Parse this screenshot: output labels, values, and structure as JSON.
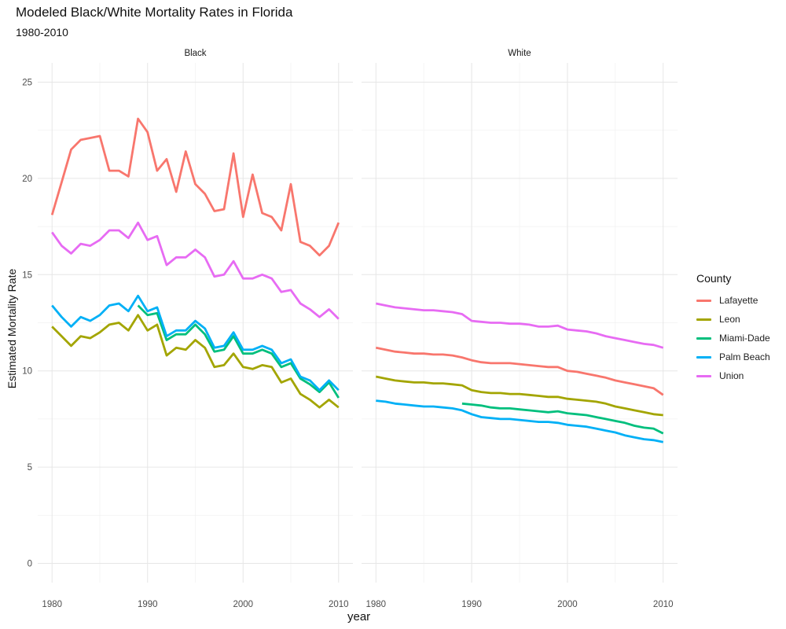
{
  "chart_data": {
    "type": "line",
    "title": "Modeled Black/White Mortality Rates in Florida",
    "subtitle": "1980-2010",
    "xlabel": "year",
    "ylabel": "Estimated Mortality Rate",
    "ylim": [
      -1,
      26
    ],
    "yticks": [
      0,
      5,
      10,
      15,
      20,
      25
    ],
    "xlim": [
      1978.5,
      2011.5
    ],
    "xticks": [
      1980,
      1990,
      2000,
      2010
    ],
    "grid": true,
    "legend_title": "County",
    "legend_position": "right",
    "colors": {
      "Lafayette": "#F8766D",
      "Leon": "#A3A500",
      "Miami-Dade": "#00BF7D",
      "Palm Beach": "#00B0F6",
      "Union": "#E76BF3"
    },
    "panels": [
      {
        "facet": "Black",
        "series": [
          {
            "name": "Lafayette",
            "x": [
              1980,
              1981,
              1982,
              1983,
              1984,
              1985,
              1986,
              1987,
              1988,
              1989,
              1990,
              1991,
              1992,
              1993,
              1994,
              1995,
              1996,
              1997,
              1998,
              1999,
              2000,
              2001,
              2002,
              2003,
              2004,
              2005,
              2006,
              2007,
              2008,
              2009,
              2010
            ],
            "values": [
              18.1,
              19.8,
              21.5,
              22.0,
              22.1,
              22.2,
              20.4,
              20.4,
              20.1,
              23.1,
              22.4,
              20.4,
              21.0,
              19.3,
              21.4,
              19.7,
              19.2,
              18.3,
              18.4,
              21.3,
              18.0,
              20.2,
              18.2,
              18.0,
              17.3,
              19.7,
              16.7,
              16.5,
              16.0,
              16.5,
              17.7
            ]
          },
          {
            "name": "Leon",
            "x": [
              1980,
              1981,
              1982,
              1983,
              1984,
              1985,
              1986,
              1987,
              1988,
              1989,
              1990,
              1991,
              1992,
              1993,
              1994,
              1995,
              1996,
              1997,
              1998,
              1999,
              2000,
              2001,
              2002,
              2003,
              2004,
              2005,
              2006,
              2007,
              2008,
              2009,
              2010
            ],
            "values": [
              12.3,
              11.8,
              11.3,
              11.8,
              11.7,
              12.0,
              12.4,
              12.5,
              12.1,
              12.9,
              12.1,
              12.4,
              10.8,
              11.2,
              11.1,
              11.6,
              11.2,
              10.2,
              10.3,
              10.9,
              10.2,
              10.1,
              10.3,
              10.2,
              9.4,
              9.6,
              8.8,
              8.5,
              8.1,
              8.5,
              8.1
            ]
          },
          {
            "name": "Miami-Dade",
            "x": [
              1989,
              1990,
              1991,
              1992,
              1993,
              1994,
              1995,
              1996,
              1997,
              1998,
              1999,
              2000,
              2001,
              2002,
              2003,
              2004,
              2005,
              2006,
              2007,
              2008,
              2009,
              2010
            ],
            "values": [
              13.4,
              12.9,
              13.0,
              11.6,
              11.9,
              11.9,
              12.4,
              11.9,
              11.0,
              11.1,
              11.8,
              10.9,
              10.9,
              11.1,
              10.9,
              10.2,
              10.4,
              9.6,
              9.3,
              8.9,
              9.4,
              8.6
            ]
          },
          {
            "name": "Palm Beach",
            "x": [
              1980,
              1981,
              1982,
              1983,
              1984,
              1985,
              1986,
              1987,
              1988,
              1989,
              1990,
              1991,
              1992,
              1993,
              1994,
              1995,
              1996,
              1997,
              1998,
              1999,
              2000,
              2001,
              2002,
              2003,
              2004,
              2005,
              2006,
              2007,
              2008,
              2009,
              2010
            ],
            "values": [
              13.4,
              12.8,
              12.3,
              12.8,
              12.6,
              12.9,
              13.4,
              13.5,
              13.1,
              13.9,
              13.1,
              13.3,
              11.8,
              12.1,
              12.1,
              12.6,
              12.2,
              11.2,
              11.3,
              12.0,
              11.1,
              11.1,
              11.3,
              11.1,
              10.4,
              10.6,
              9.7,
              9.5,
              9.0,
              9.5,
              9.0
            ]
          },
          {
            "name": "Union",
            "x": [
              1980,
              1981,
              1982,
              1983,
              1984,
              1985,
              1986,
              1987,
              1988,
              1989,
              1990,
              1991,
              1992,
              1993,
              1994,
              1995,
              1996,
              1997,
              1998,
              1999,
              2000,
              2001,
              2002,
              2003,
              2004,
              2005,
              2006,
              2007,
              2008,
              2009,
              2010
            ],
            "values": [
              17.2,
              16.5,
              16.1,
              16.6,
              16.5,
              16.8,
              17.3,
              17.3,
              16.9,
              17.7,
              16.8,
              17.0,
              15.5,
              15.9,
              15.9,
              16.3,
              15.9,
              14.9,
              15.0,
              15.7,
              14.8,
              14.8,
              15.0,
              14.8,
              14.1,
              14.2,
              13.5,
              13.2,
              12.8,
              13.2,
              12.7
            ]
          }
        ]
      },
      {
        "facet": "White",
        "series": [
          {
            "name": "Lafayette",
            "x": [
              1980,
              1981,
              1982,
              1983,
              1984,
              1985,
              1986,
              1987,
              1988,
              1989,
              1990,
              1991,
              1992,
              1993,
              1994,
              1995,
              1996,
              1997,
              1998,
              1999,
              2000,
              2001,
              2002,
              2003,
              2004,
              2005,
              2006,
              2007,
              2008,
              2009,
              2010
            ],
            "values": [
              11.2,
              11.1,
              11.0,
              10.95,
              10.9,
              10.9,
              10.85,
              10.85,
              10.8,
              10.7,
              10.55,
              10.45,
              10.4,
              10.4,
              10.4,
              10.35,
              10.3,
              10.25,
              10.2,
              10.2,
              10.0,
              9.95,
              9.85,
              9.75,
              9.65,
              9.5,
              9.4,
              9.3,
              9.2,
              9.1,
              8.75
            ]
          },
          {
            "name": "Leon",
            "x": [
              1980,
              1981,
              1982,
              1983,
              1984,
              1985,
              1986,
              1987,
              1988,
              1989,
              1990,
              1991,
              1992,
              1993,
              1994,
              1995,
              1996,
              1997,
              1998,
              1999,
              2000,
              2001,
              2002,
              2003,
              2004,
              2005,
              2006,
              2007,
              2008,
              2009,
              2010
            ],
            "values": [
              9.7,
              9.6,
              9.5,
              9.45,
              9.4,
              9.4,
              9.35,
              9.35,
              9.3,
              9.25,
              9.0,
              8.9,
              8.85,
              8.85,
              8.8,
              8.8,
              8.75,
              8.7,
              8.65,
              8.65,
              8.55,
              8.5,
              8.45,
              8.4,
              8.3,
              8.15,
              8.05,
              7.95,
              7.85,
              7.75,
              7.7
            ]
          },
          {
            "name": "Miami-Dade",
            "x": [
              1989,
              1990,
              1991,
              1992,
              1993,
              1994,
              1995,
              1996,
              1997,
              1998,
              1999,
              2000,
              2001,
              2002,
              2003,
              2004,
              2005,
              2006,
              2007,
              2008,
              2009,
              2010
            ],
            "values": [
              8.3,
              8.25,
              8.2,
              8.1,
              8.05,
              8.05,
              8.0,
              7.95,
              7.9,
              7.85,
              7.9,
              7.8,
              7.75,
              7.7,
              7.6,
              7.5,
              7.4,
              7.3,
              7.15,
              7.05,
              7.0,
              6.75
            ]
          },
          {
            "name": "Palm Beach",
            "x": [
              1980,
              1981,
              1982,
              1983,
              1984,
              1985,
              1986,
              1987,
              1988,
              1989,
              1990,
              1991,
              1992,
              1993,
              1994,
              1995,
              1996,
              1997,
              1998,
              1999,
              2000,
              2001,
              2002,
              2003,
              2004,
              2005,
              2006,
              2007,
              2008,
              2009,
              2010
            ],
            "values": [
              8.45,
              8.4,
              8.3,
              8.25,
              8.2,
              8.15,
              8.15,
              8.1,
              8.05,
              7.95,
              7.75,
              7.6,
              7.55,
              7.5,
              7.5,
              7.45,
              7.4,
              7.35,
              7.35,
              7.3,
              7.2,
              7.15,
              7.1,
              7.0,
              6.9,
              6.8,
              6.65,
              6.55,
              6.45,
              6.4,
              6.3
            ]
          },
          {
            "name": "Union",
            "x": [
              1980,
              1981,
              1982,
              1983,
              1984,
              1985,
              1986,
              1987,
              1988,
              1989,
              1990,
              1991,
              1992,
              1993,
              1994,
              1995,
              1996,
              1997,
              1998,
              1999,
              2000,
              2001,
              2002,
              2003,
              2004,
              2005,
              2006,
              2007,
              2008,
              2009,
              2010
            ],
            "values": [
              13.5,
              13.4,
              13.3,
              13.25,
              13.2,
              13.15,
              13.15,
              13.1,
              13.05,
              12.95,
              12.6,
              12.55,
              12.5,
              12.5,
              12.45,
              12.45,
              12.4,
              12.3,
              12.3,
              12.35,
              12.15,
              12.1,
              12.05,
              11.95,
              11.8,
              11.7,
              11.6,
              11.5,
              11.4,
              11.35,
              11.2
            ]
          }
        ]
      }
    ]
  }
}
